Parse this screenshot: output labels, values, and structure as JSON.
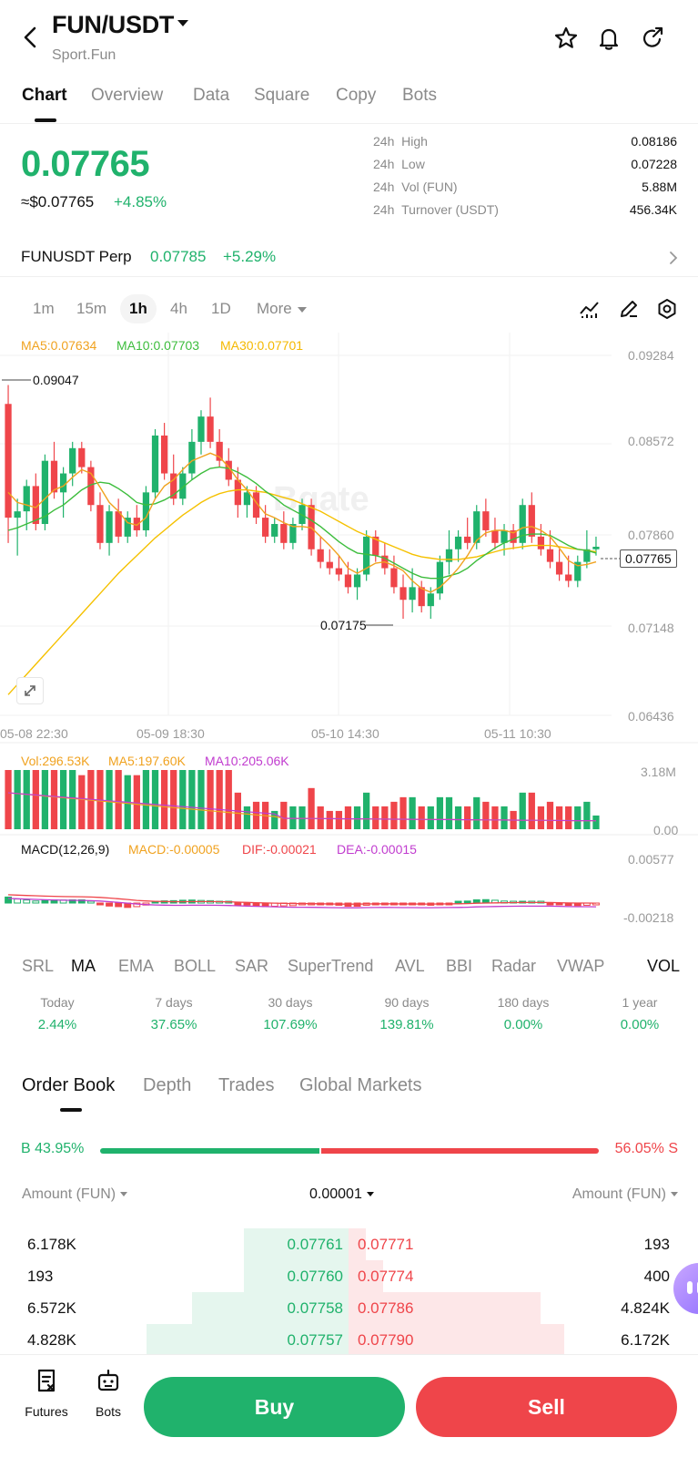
{
  "header": {
    "title": "FUN/USDT",
    "subtitle": "Sport.Fun"
  },
  "tabs": [
    {
      "label": "Chart",
      "active": true
    },
    {
      "label": "Overview"
    },
    {
      "label": "Data"
    },
    {
      "label": "Square"
    },
    {
      "label": "Copy"
    },
    {
      "label": "Bots"
    }
  ],
  "price": {
    "last": "0.07765",
    "fiat": "≈$0.07765",
    "change": "+4.85%"
  },
  "stats": [
    {
      "period": "24h",
      "label": "High",
      "value": "0.08186"
    },
    {
      "period": "24h",
      "label": "Low",
      "value": "0.07228"
    },
    {
      "period": "24h",
      "label": "Vol (FUN)",
      "value": "5.88M"
    },
    {
      "period": "24h",
      "label": "Turnover (USDT)",
      "value": "456.34K"
    }
  ],
  "perp": {
    "name": "FUNUSDT Perp",
    "price": "0.07785",
    "change": "+5.29%"
  },
  "intervals": [
    "1m",
    "15m",
    "1h",
    "4h",
    "1D",
    "More"
  ],
  "active_interval": "1h",
  "chart": {
    "ma_legend": {
      "ma5": "MA5:0.07634",
      "ma10": "MA10:0.07703",
      "ma30": "MA30:0.07701"
    },
    "price_axis": [
      "0.09284",
      "0.08572",
      "0.07860",
      "0.07148",
      "0.06436"
    ],
    "time_axis": [
      "05-08 22:30",
      "05-09 18:30",
      "05-10 14:30",
      "05-11 10:30"
    ],
    "high_marker": "0.09047",
    "low_marker": "0.07175",
    "current_tag": "0.07765",
    "vol_legend": {
      "vol": "Vol:296.53K",
      "ma5": "MA5:197.60K",
      "ma10": "MA10:205.06K"
    },
    "vol_axis": [
      "3.18M",
      "0.00"
    ],
    "macd_legend": {
      "name": "MACD(12,26,9)",
      "macd": "MACD:-0.00005",
      "dif": "DIF:-0.00021",
      "dea": "DEA:-0.00015"
    },
    "macd_axis": [
      "0.00577",
      "-0.00218"
    ],
    "watermark": "Bgate"
  },
  "chart_data": {
    "type": "candlestick",
    "y_range": [
      0.06436,
      0.09284
    ],
    "candles": [
      [
        0.089,
        0.0905,
        0.078,
        0.08
      ],
      [
        0.08,
        0.0815,
        0.077,
        0.0805
      ],
      [
        0.0805,
        0.083,
        0.079,
        0.0825
      ],
      [
        0.0825,
        0.0835,
        0.079,
        0.0795
      ],
      [
        0.0795,
        0.085,
        0.079,
        0.0845
      ],
      [
        0.0845,
        0.086,
        0.0815,
        0.082
      ],
      [
        0.082,
        0.084,
        0.08,
        0.0835
      ],
      [
        0.0835,
        0.086,
        0.0825,
        0.0855
      ],
      [
        0.0855,
        0.086,
        0.0835,
        0.084
      ],
      [
        0.084,
        0.0845,
        0.0805,
        0.081
      ],
      [
        0.081,
        0.082,
        0.0775,
        0.078
      ],
      [
        0.078,
        0.081,
        0.077,
        0.0805
      ],
      [
        0.0805,
        0.0815,
        0.078,
        0.0785
      ],
      [
        0.0785,
        0.0805,
        0.078,
        0.08
      ],
      [
        0.08,
        0.081,
        0.0785,
        0.079
      ],
      [
        0.079,
        0.0825,
        0.0785,
        0.082
      ],
      [
        0.082,
        0.087,
        0.0815,
        0.0865
      ],
      [
        0.0865,
        0.0875,
        0.083,
        0.0835
      ],
      [
        0.0835,
        0.085,
        0.081,
        0.0815
      ],
      [
        0.0815,
        0.084,
        0.081,
        0.0835
      ],
      [
        0.0835,
        0.087,
        0.083,
        0.086
      ],
      [
        0.086,
        0.0885,
        0.085,
        0.088
      ],
      [
        0.088,
        0.0895,
        0.0855,
        0.086
      ],
      [
        0.086,
        0.087,
        0.084,
        0.0845
      ],
      [
        0.0845,
        0.0855,
        0.0825,
        0.083
      ],
      [
        0.083,
        0.084,
        0.08,
        0.081
      ],
      [
        0.081,
        0.0825,
        0.08,
        0.082
      ],
      [
        0.082,
        0.0825,
        0.0795,
        0.08
      ],
      [
        0.08,
        0.081,
        0.078,
        0.0785
      ],
      [
        0.0785,
        0.08,
        0.078,
        0.0795
      ],
      [
        0.0795,
        0.0805,
        0.0775,
        0.078
      ],
      [
        0.078,
        0.08,
        0.0775,
        0.0795
      ],
      [
        0.0795,
        0.0815,
        0.079,
        0.081
      ],
      [
        0.081,
        0.0815,
        0.077,
        0.0775
      ],
      [
        0.0775,
        0.0785,
        0.076,
        0.0765
      ],
      [
        0.0765,
        0.0775,
        0.0755,
        0.076
      ],
      [
        0.076,
        0.077,
        0.075,
        0.0755
      ],
      [
        0.0755,
        0.0765,
        0.074,
        0.0745
      ],
      [
        0.0745,
        0.076,
        0.0735,
        0.0755
      ],
      [
        0.0755,
        0.079,
        0.075,
        0.0785
      ],
      [
        0.0785,
        0.079,
        0.0765,
        0.077
      ],
      [
        0.077,
        0.078,
        0.0755,
        0.076
      ],
      [
        0.076,
        0.077,
        0.074,
        0.0745
      ],
      [
        0.0745,
        0.0755,
        0.072,
        0.0735
      ],
      [
        0.0735,
        0.076,
        0.0725,
        0.0745
      ],
      [
        0.0745,
        0.075,
        0.0725,
        0.073
      ],
      [
        0.073,
        0.0745,
        0.072,
        0.074
      ],
      [
        0.074,
        0.077,
        0.0735,
        0.0765
      ],
      [
        0.0765,
        0.079,
        0.0755,
        0.0775
      ],
      [
        0.0775,
        0.079,
        0.0765,
        0.0785
      ],
      [
        0.0785,
        0.08,
        0.0775,
        0.078
      ],
      [
        0.078,
        0.081,
        0.0775,
        0.0805
      ],
      [
        0.0805,
        0.0815,
        0.0785,
        0.079
      ],
      [
        0.079,
        0.08,
        0.0775,
        0.078
      ],
      [
        0.078,
        0.0795,
        0.077,
        0.079
      ],
      [
        0.079,
        0.0795,
        0.0775,
        0.078
      ],
      [
        0.078,
        0.0815,
        0.0775,
        0.081
      ],
      [
        0.081,
        0.082,
        0.078,
        0.0785
      ],
      [
        0.0785,
        0.0795,
        0.077,
        0.0775
      ],
      [
        0.0775,
        0.079,
        0.076,
        0.0765
      ],
      [
        0.0765,
        0.0775,
        0.075,
        0.0755
      ],
      [
        0.0755,
        0.077,
        0.0745,
        0.075
      ],
      [
        0.075,
        0.077,
        0.0745,
        0.0765
      ],
      [
        0.0765,
        0.079,
        0.076,
        0.0775
      ],
      [
        0.0775,
        0.0785,
        0.077,
        0.0777
      ]
    ],
    "ma5": [
      0.082,
      0.0812,
      0.081,
      0.0808,
      0.0815,
      0.0822,
      0.0825,
      0.0832,
      0.0838,
      0.0835,
      0.0824,
      0.0812,
      0.0805,
      0.0796,
      0.0794,
      0.08,
      0.0815,
      0.0825,
      0.083,
      0.0838,
      0.0845,
      0.0848,
      0.0851,
      0.0848,
      0.084,
      0.083,
      0.0822,
      0.0812,
      0.0803,
      0.08,
      0.0796,
      0.0793,
      0.0793,
      0.0792,
      0.0785,
      0.0778,
      0.077,
      0.076,
      0.0756,
      0.076,
      0.0764,
      0.0765,
      0.0762,
      0.0758,
      0.075,
      0.0744,
      0.0741,
      0.0745,
      0.0752,
      0.076,
      0.077,
      0.0782,
      0.0788,
      0.079,
      0.079,
      0.0788,
      0.0792,
      0.0793,
      0.079,
      0.0785,
      0.0776,
      0.0766,
      0.0762,
      0.0763,
      0.0765
    ],
    "ma10": [
      0.079,
      0.0792,
      0.0795,
      0.0798,
      0.0801,
      0.0806,
      0.081,
      0.0816,
      0.0822,
      0.0826,
      0.0828,
      0.0827,
      0.0823,
      0.0818,
      0.0812,
      0.081,
      0.0811,
      0.0814,
      0.0818,
      0.0824,
      0.083,
      0.0835,
      0.0839,
      0.084,
      0.0839,
      0.0836,
      0.0832,
      0.0827,
      0.0821,
      0.0816,
      0.081,
      0.0806,
      0.0802,
      0.0798,
      0.0793,
      0.0787,
      0.0781,
      0.0776,
      0.0772,
      0.0771,
      0.077,
      0.0768,
      0.0764,
      0.076,
      0.0756,
      0.0753,
      0.0752,
      0.0752,
      0.0754,
      0.0756,
      0.076,
      0.0766,
      0.0771,
      0.0776,
      0.078,
      0.0783,
      0.0786,
      0.0787,
      0.0787,
      0.0786,
      0.0782,
      0.0778,
      0.0775,
      0.0774,
      0.0772
    ],
    "ma30": [
      0.066,
      0.0668,
      0.0676,
      0.0684,
      0.0692,
      0.07,
      0.0708,
      0.0716,
      0.0724,
      0.0732,
      0.074,
      0.0748,
      0.0756,
      0.0763,
      0.077,
      0.0777,
      0.0784,
      0.079,
      0.0796,
      0.0802,
      0.0807,
      0.0812,
      0.0816,
      0.0819,
      0.0821,
      0.0822,
      0.0822,
      0.0821,
      0.082,
      0.0818,
      0.0816,
      0.0814,
      0.0811,
      0.0808,
      0.0805,
      0.0801,
      0.0797,
      0.0793,
      0.0789,
      0.0786,
      0.0783,
      0.078,
      0.0777,
      0.0774,
      0.0771,
      0.0769,
      0.0768,
      0.0767,
      0.0767,
      0.0767,
      0.0768,
      0.0769,
      0.0771,
      0.0773,
      0.0775,
      0.0776,
      0.0777,
      0.0778,
      0.0778,
      0.0778,
      0.0777,
      0.0776,
      0.0775,
      0.0774,
      0.0773
    ]
  },
  "indicators": [
    "SRL",
    "MA",
    "EMA",
    "BOLL",
    "SAR",
    "SuperTrend",
    "AVL",
    "BBI",
    "Radar",
    "VWAP",
    "VOL"
  ],
  "active_indicator": "MA",
  "performance": [
    {
      "label": "Today",
      "value": "2.44%"
    },
    {
      "label": "7 days",
      "value": "37.65%"
    },
    {
      "label": "30 days",
      "value": "107.69%"
    },
    {
      "label": "90 days",
      "value": "139.81%"
    },
    {
      "label": "180 days",
      "value": "0.00%"
    },
    {
      "label": "1 year",
      "value": "0.00%"
    }
  ],
  "order_book": {
    "tabs": [
      "Order Book",
      "Depth",
      "Trades",
      "Global Markets"
    ],
    "buy_ratio_label": "B 43.95%",
    "sell_ratio_label": "56.05% S",
    "buy_ratio": 0.4395,
    "left_header": "Amount (FUN)",
    "precision": "0.00001",
    "right_header": "Amount (FUN)",
    "rows": [
      {
        "bid_amount": "6.178K",
        "bid_price": "0.07761",
        "ask_price": "0.07771",
        "ask_amount": "193",
        "bid_depth": 0.3,
        "ask_depth": 0.05
      },
      {
        "bid_amount": "193",
        "bid_price": "0.07760",
        "ask_price": "0.07774",
        "ask_amount": "400",
        "bid_depth": 0.3,
        "ask_depth": 0.1
      },
      {
        "bid_amount": "6.572K",
        "bid_price": "0.07758",
        "ask_price": "0.07786",
        "ask_amount": "4.824K",
        "bid_depth": 0.45,
        "ask_depth": 0.55
      },
      {
        "bid_amount": "4.828K",
        "bid_price": "0.07757",
        "ask_price": "0.07790",
        "ask_amount": "6.172K",
        "bid_depth": 0.58,
        "ask_depth": 0.62
      }
    ]
  },
  "bottom_bar": {
    "futures": "Futures",
    "bots": "Bots",
    "buy": "Buy",
    "sell": "Sell"
  },
  "colors": {
    "up": "#20b26c",
    "down": "#ef454a",
    "ma5": "#f0a21f",
    "ma10": "#3dbd3d",
    "ma30": "#f5c100"
  }
}
